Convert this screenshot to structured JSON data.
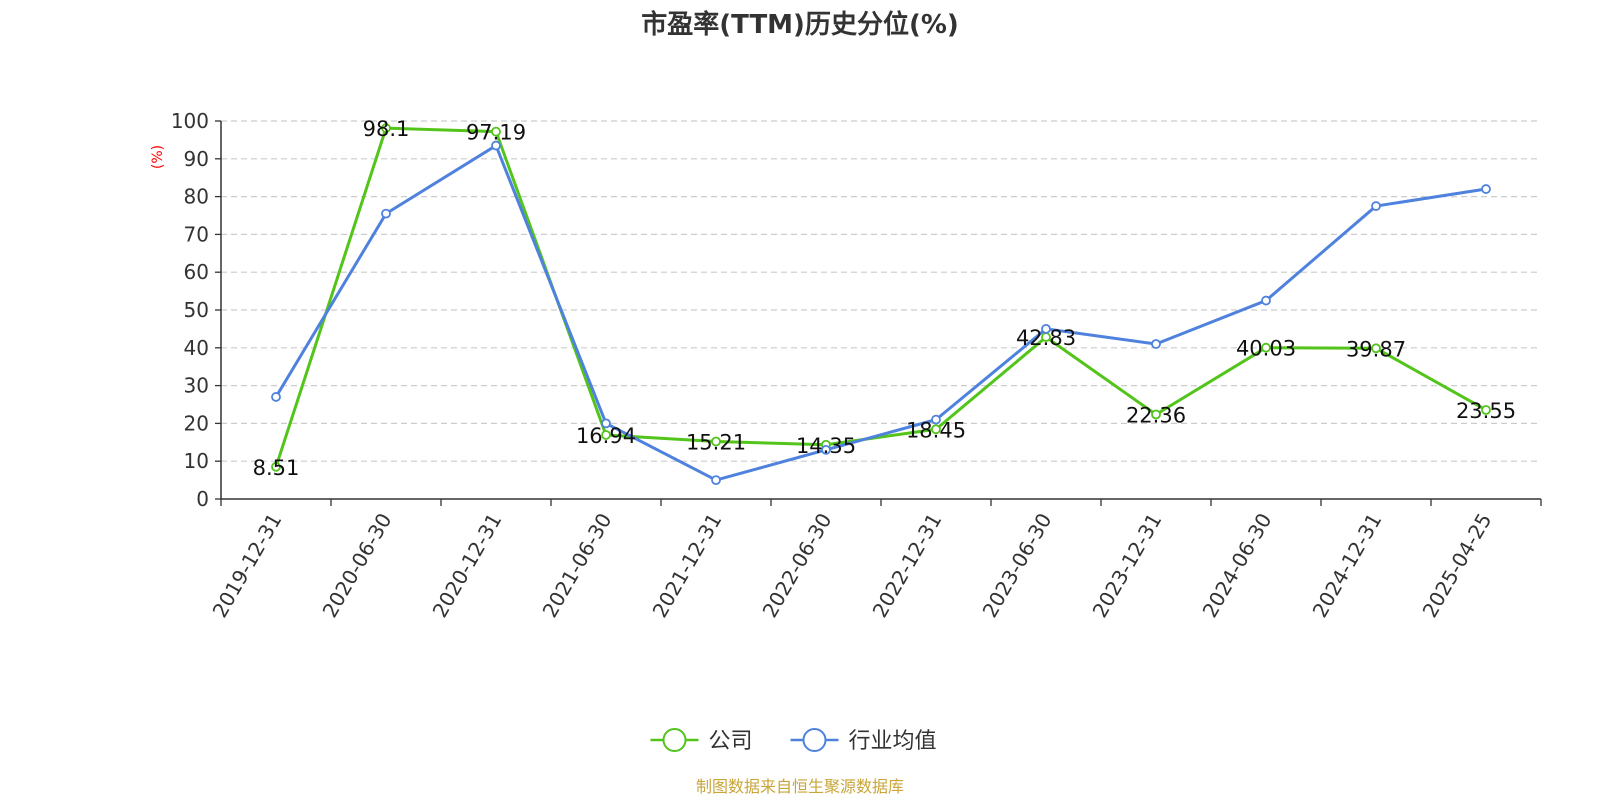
{
  "chart_data": {
    "type": "line",
    "title": "市盈率(TTM)历史分位(%)",
    "ylabel": "(%)",
    "ylim": [
      0,
      100
    ],
    "yticks": [
      0,
      10,
      20,
      30,
      40,
      50,
      60,
      70,
      80,
      90,
      100
    ],
    "grid": true,
    "legend_position": "bottom",
    "categories": [
      "2019-12-31",
      "2020-06-30",
      "2020-12-31",
      "2021-06-30",
      "2021-12-31",
      "2022-06-30",
      "2022-12-31",
      "2023-06-30",
      "2023-12-31",
      "2024-06-30",
      "2024-12-31",
      "2025-04-25"
    ],
    "series": [
      {
        "name": "公司",
        "color": "#52c41a",
        "show_labels": true,
        "values": [
          8.51,
          98.1,
          97.19,
          16.94,
          15.21,
          14.35,
          18.45,
          42.83,
          22.36,
          40.03,
          39.87,
          23.55
        ],
        "labels": [
          "8.51",
          "98.1",
          "97.19",
          "16.94",
          "15.21",
          "14.35",
          "18.45",
          "42.83",
          "22.36",
          "40.03",
          "39.87",
          "23.55"
        ]
      },
      {
        "name": "行业均值",
        "color": "#4f82dd",
        "show_labels": false,
        "values": [
          27,
          75.5,
          93.5,
          20,
          5,
          13,
          21,
          45,
          41,
          52.5,
          77.5,
          82
        ]
      }
    ],
    "source": "制图数据来自恒生聚源数据库",
    "source_color": "#c9a53a",
    "ylabel_color": "#ff0000"
  }
}
